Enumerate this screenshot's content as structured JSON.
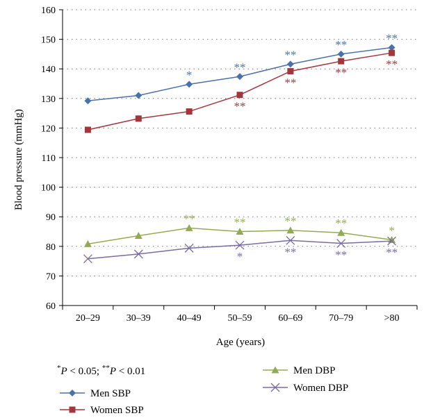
{
  "chart_data": {
    "type": "line",
    "xlabel": "Age (years)",
    "ylabel": "Blood pressure (mmHg)",
    "ylim": [
      60,
      160
    ],
    "ytick_step": 10,
    "grid": "horizontal dotted",
    "legend_placement": "bottom",
    "categories": [
      "20–29",
      "30–39",
      "40–49",
      "50–59",
      "60–69",
      "70–79",
      ">80"
    ],
    "series": [
      {
        "name": "Men SBP",
        "marker": "diamond",
        "color": "#4a72a8",
        "values": [
          129.2,
          131.0,
          134.8,
          137.4,
          141.6,
          145.0,
          147.2
        ],
        "sig": [
          "",
          "",
          "*",
          "**",
          "**",
          "**",
          "**"
        ],
        "sig_pos": "above"
      },
      {
        "name": "Women SBP",
        "marker": "square",
        "color": "#a3363c",
        "values": [
          119.4,
          123.2,
          125.6,
          131.2,
          139.2,
          142.6,
          145.4
        ],
        "sig": [
          "",
          "",
          "",
          "**",
          "**",
          "**",
          "**"
        ],
        "sig_pos": "below"
      },
      {
        "name": "Men DBP",
        "marker": "triangle",
        "color": "#93aa55",
        "values": [
          80.8,
          83.6,
          86.2,
          85.0,
          85.4,
          84.6,
          82.2
        ],
        "sig": [
          "",
          "",
          "**",
          "**",
          "**",
          "**",
          "*"
        ],
        "sig_pos": "above"
      },
      {
        "name": "Women DBP",
        "marker": "x",
        "color": "#7a6ba0",
        "values": [
          75.8,
          77.4,
          79.4,
          80.4,
          82.0,
          81.0,
          81.8
        ],
        "sig": [
          "",
          "",
          "",
          "*",
          "**",
          "**",
          "**"
        ],
        "sig_pos": "below"
      }
    ],
    "annotation": "*P < 0.05; **P < 0.01"
  }
}
